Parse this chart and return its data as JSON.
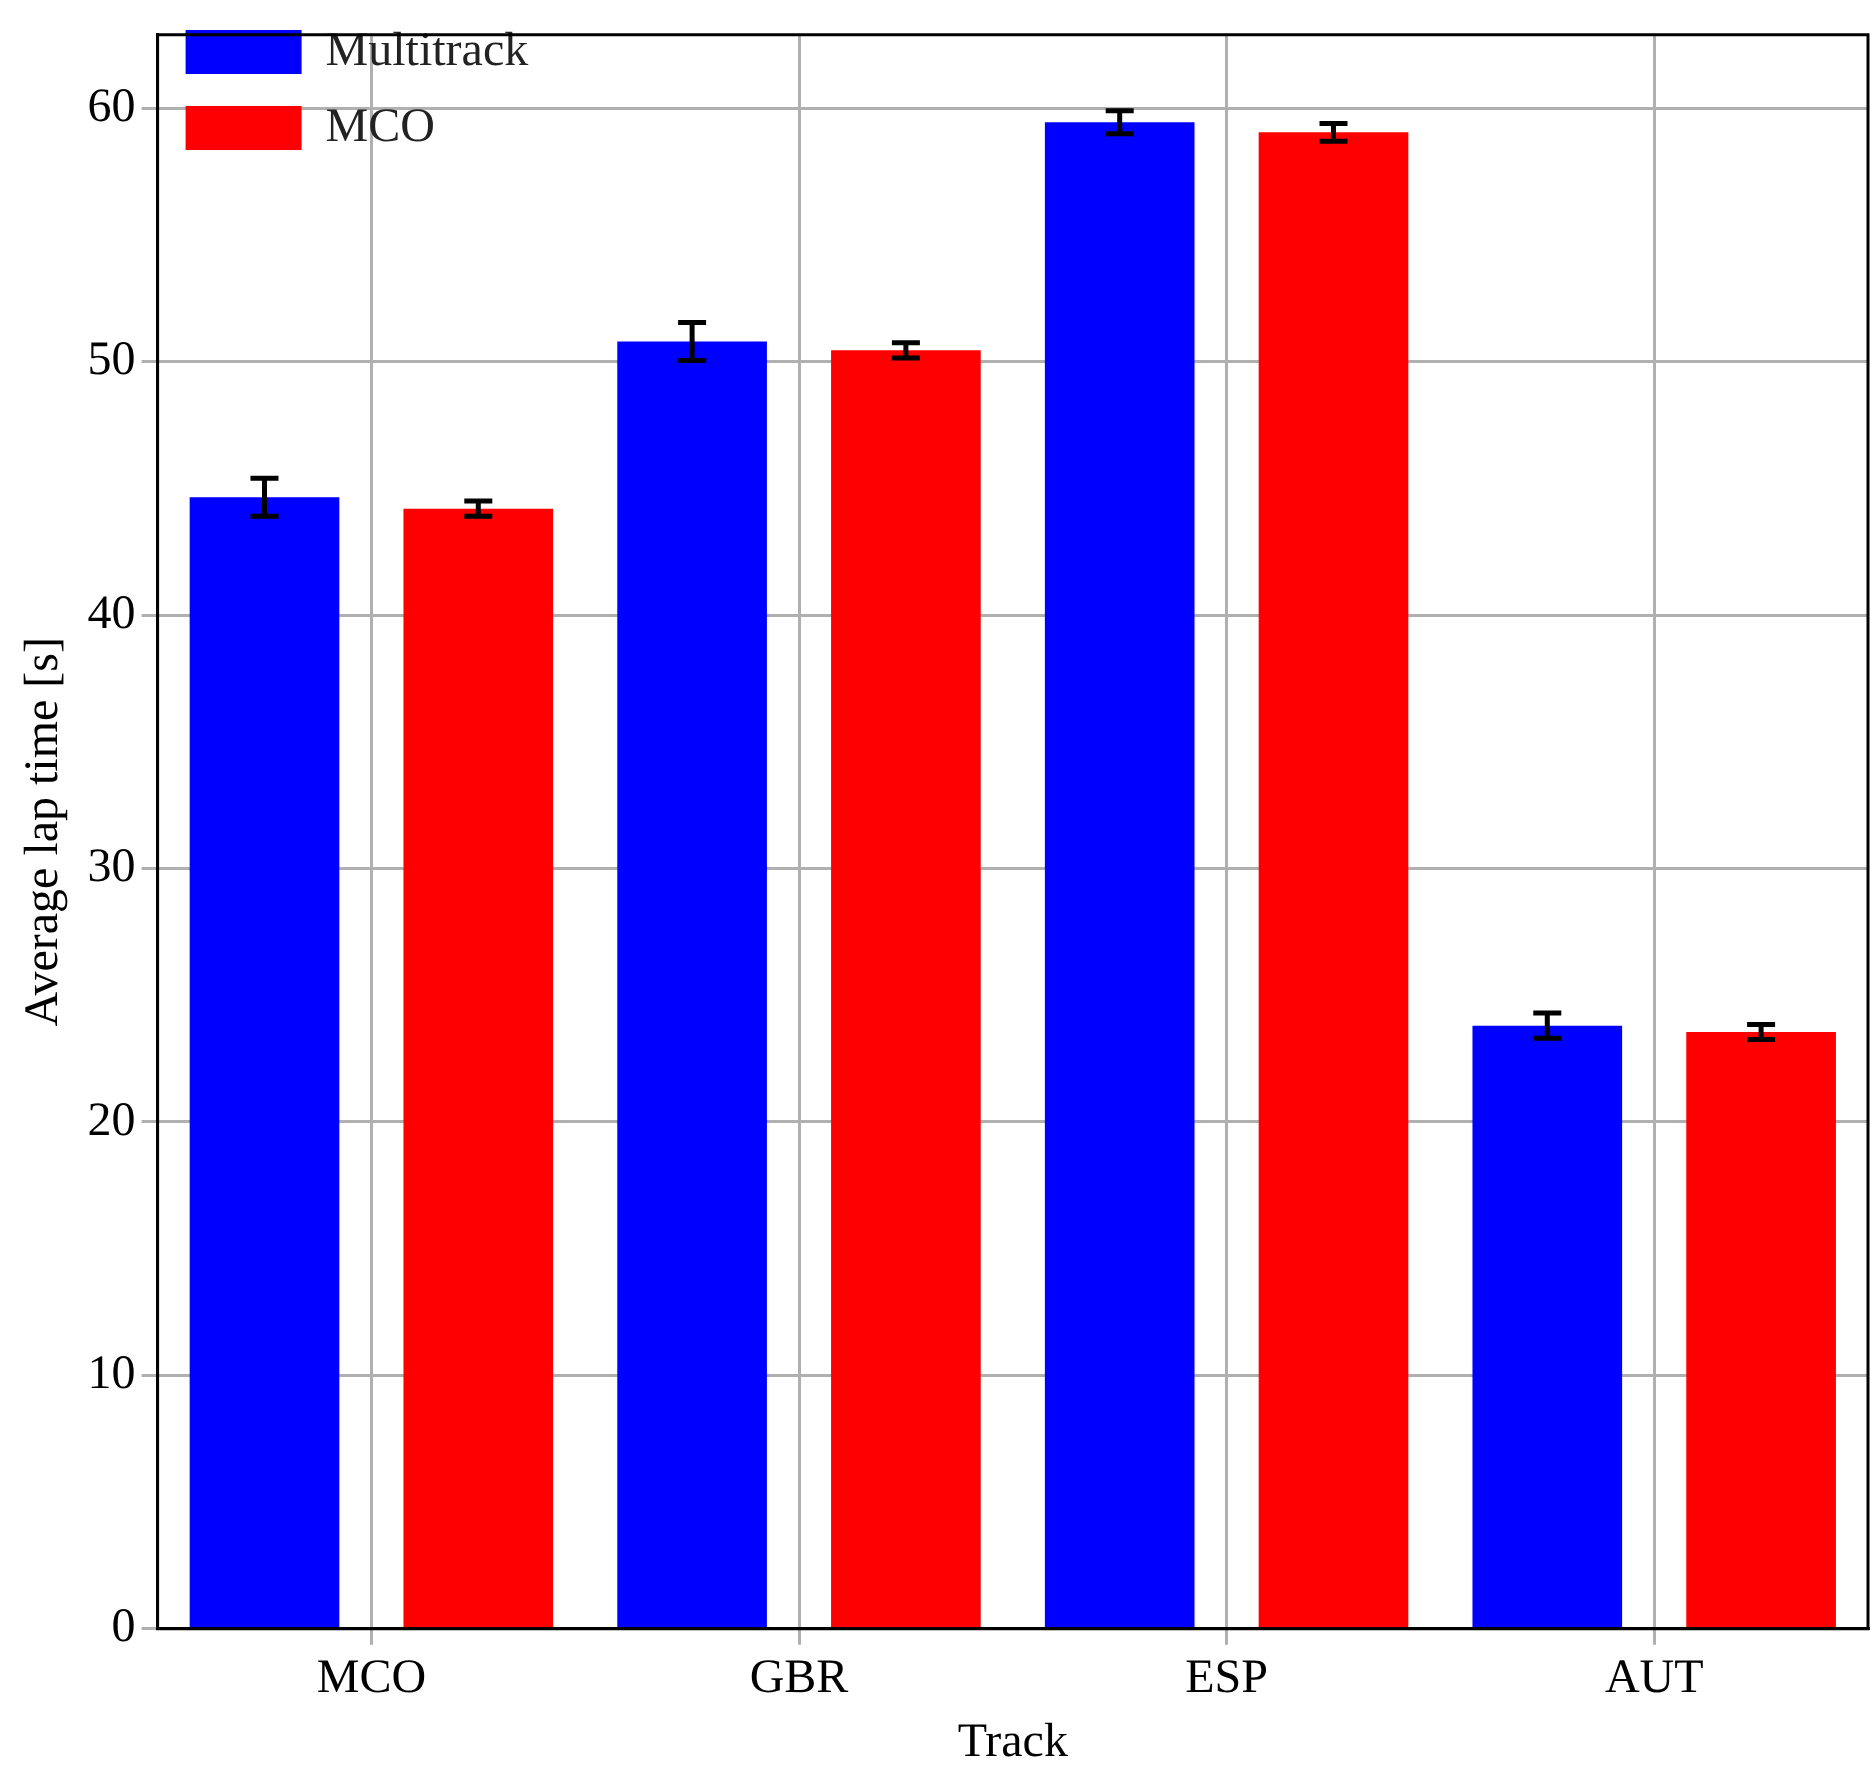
{
  "chart_data": {
    "type": "bar",
    "xlabel": "Track",
    "ylabel": "Average lap time [s]",
    "categories": [
      "MCO",
      "GBR",
      "ESP",
      "AUT"
    ],
    "series": [
      {
        "name": "Multitrack",
        "color": "#0000ff",
        "values": [
          44.65,
          50.8,
          59.45,
          23.8
        ],
        "errors": [
          0.75,
          0.75,
          0.45,
          0.5
        ]
      },
      {
        "name": "MCO",
        "color": "#ff0000",
        "values": [
          44.2,
          50.45,
          59.05,
          23.55
        ],
        "errors": [
          0.3,
          0.3,
          0.35,
          0.3
        ]
      }
    ],
    "ylim": [
      0,
      62.9
    ],
    "yticks": [
      0,
      10,
      20,
      30,
      40,
      50,
      60
    ],
    "grid": true,
    "legend": "top left"
  }
}
